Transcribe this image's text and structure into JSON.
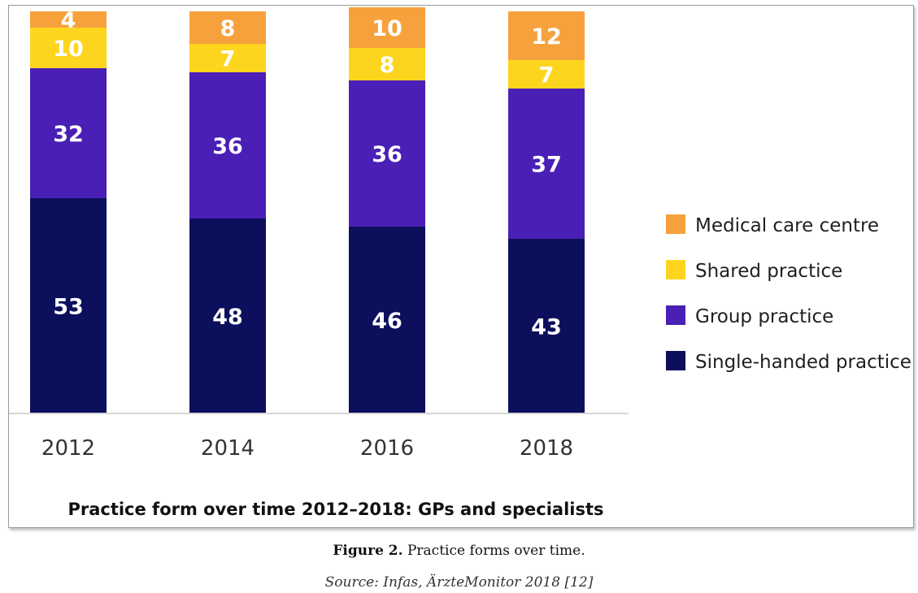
{
  "chart_data": {
    "type": "bar",
    "stacked": true,
    "title": "Practice form over time 2012–2018: GPs and specialists",
    "categories": [
      "2012",
      "2014",
      "2016",
      "2018"
    ],
    "series": [
      {
        "name": "Single-handed practice",
        "color": "#0c0f5c",
        "label_color": "#ffffff",
        "values": [
          53,
          48,
          46,
          43
        ]
      },
      {
        "name": "Group practice",
        "color": "#4a1fb5",
        "label_color": "#ffffff",
        "values": [
          32,
          36,
          36,
          37
        ]
      },
      {
        "name": "Shared practice",
        "color": "#fdd51e",
        "label_color": "#ffffff",
        "values": [
          10,
          7,
          8,
          7
        ]
      },
      {
        "name": "Medical care centre",
        "color": "#f7a13c",
        "label_color": "#ffffff",
        "values": [
          4,
          8,
          10,
          12
        ]
      }
    ],
    "legend_order": [
      "Medical care centre",
      "Shared practice",
      "Group practice",
      "Single-handed practice"
    ],
    "legend_position": "right",
    "grid": false
  },
  "caption": {
    "label": "Figure 2.",
    "text": " Practice forms over time."
  },
  "source": "Source: Infas, ÄrzteMonitor 2018 [12]"
}
